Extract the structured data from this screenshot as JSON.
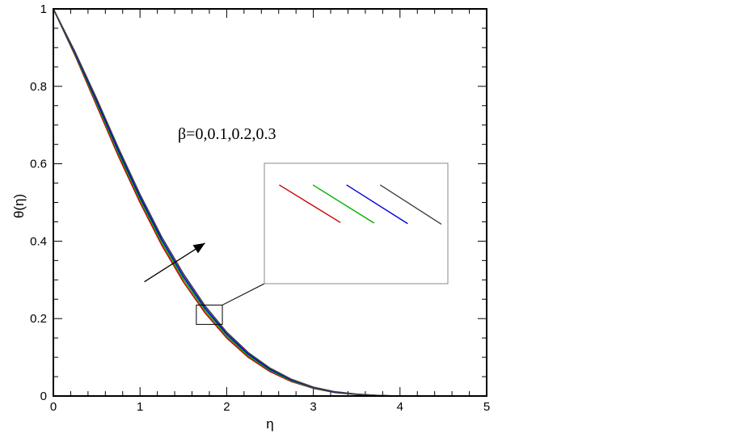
{
  "chart_data": {
    "type": "line",
    "title": "",
    "xlabel": "η",
    "ylabel": "θ(η)",
    "xlim": [
      0,
      5
    ],
    "ylim": [
      0,
      1
    ],
    "x_ticks": [
      "0",
      "1",
      "2",
      "3",
      "4",
      "5"
    ],
    "y_ticks": [
      "0",
      "0.2",
      "0.4",
      "0.6",
      "0.8",
      "1"
    ],
    "grid": false,
    "annotation": "β=0,0.1,0.2,0.3",
    "series": [
      {
        "color": "#cc0000",
        "x": [
          0,
          0.25,
          0.5,
          0.75,
          1.0,
          1.25,
          1.5,
          1.75,
          2.0,
          2.25,
          2.5,
          2.75,
          3.0,
          3.25,
          3.5,
          3.75,
          4.0
        ],
        "y": [
          1.0,
          0.88,
          0.75,
          0.62,
          0.5,
          0.39,
          0.295,
          0.215,
          0.15,
          0.1,
          0.063,
          0.037,
          0.02,
          0.009,
          0.004,
          0.001,
          0.0
        ]
      },
      {
        "color": "#00b000",
        "x": [
          0,
          0.25,
          0.5,
          0.75,
          1.0,
          1.25,
          1.5,
          1.75,
          2.0,
          2.25,
          2.5,
          2.75,
          3.0,
          3.25,
          3.5,
          3.75,
          4.0
        ],
        "y": [
          1.0,
          0.883,
          0.756,
          0.627,
          0.507,
          0.397,
          0.302,
          0.221,
          0.155,
          0.104,
          0.066,
          0.039,
          0.021,
          0.0095,
          0.0042,
          0.001,
          0.0
        ]
      },
      {
        "color": "#0000dd",
        "x": [
          0,
          0.25,
          0.5,
          0.75,
          1.0,
          1.25,
          1.5,
          1.75,
          2.0,
          2.25,
          2.5,
          2.75,
          3.0,
          3.25,
          3.5,
          3.75,
          4.0
        ],
        "y": [
          1.0,
          0.886,
          0.762,
          0.634,
          0.514,
          0.404,
          0.309,
          0.227,
          0.16,
          0.108,
          0.069,
          0.041,
          0.022,
          0.01,
          0.0045,
          0.0012,
          0.0
        ]
      },
      {
        "color": "#404040",
        "x": [
          0,
          0.25,
          0.5,
          0.75,
          1.0,
          1.25,
          1.5,
          1.75,
          2.0,
          2.25,
          2.5,
          2.75,
          3.0,
          3.25,
          3.5,
          3.75,
          4.0
        ],
        "y": [
          1.0,
          0.889,
          0.768,
          0.641,
          0.521,
          0.411,
          0.316,
          0.233,
          0.165,
          0.112,
          0.072,
          0.043,
          0.023,
          0.011,
          0.0048,
          0.0014,
          0.0
        ]
      }
    ],
    "zoom_box": {
      "xlim": [
        1.65,
        1.95
      ],
      "ylim": [
        0.185,
        0.235
      ]
    },
    "arrow": {
      "from": [
        1.05,
        0.295
      ],
      "to": [
        1.75,
        0.395
      ]
    },
    "colors": {
      "axis": "#000000",
      "inset_border": "#888888"
    }
  }
}
